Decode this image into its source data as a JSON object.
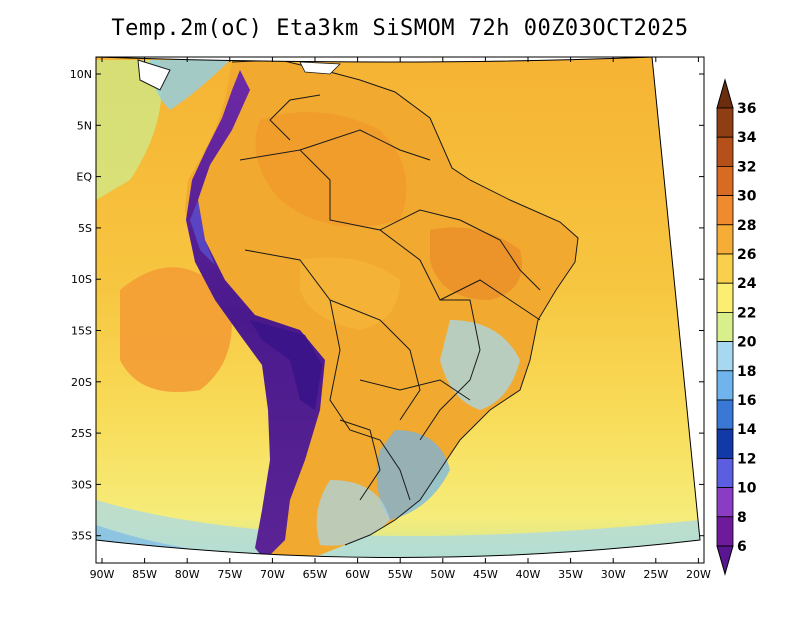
{
  "title": "Temp.2m(oC) Eta3km SiSMOM 72h 00Z03OCT2025",
  "colors": {
    "ocean_warm": "#f6b233",
    "ocean_mid": "#f7cf48",
    "ocean_cool": "#f6e874",
    "ocean_cold": "#cfe987",
    "land_hot": "#f0a530",
    "andes": "#7a2fa0",
    "andes_deep": "#4b1b86",
    "border": "#1a1a1a"
  },
  "map": {
    "lat_labels": [
      "10N",
      "5N",
      "EQ",
      "5S",
      "10S",
      "15S",
      "20S",
      "25S",
      "30S",
      "35S"
    ],
    "lon_labels": [
      "90W",
      "85W",
      "80W",
      "75W",
      "70W",
      "65W",
      "60W",
      "55W",
      "50W",
      "45W",
      "40W",
      "35W",
      "30W",
      "25W",
      "20W"
    ]
  },
  "colorbar": {
    "levels": [
      "36",
      "34",
      "32",
      "30",
      "28",
      "26",
      "24",
      "22",
      "20",
      "18",
      "16",
      "14",
      "12",
      "10",
      "8",
      "6"
    ],
    "colors": [
      "#6b2d0e",
      "#8f3d12",
      "#b5501a",
      "#d86a24",
      "#f08a2e",
      "#f6ad38",
      "#f8d04c",
      "#fbee72",
      "#d9ef8c",
      "#a6d9ef",
      "#6fb4ec",
      "#3a78d6",
      "#1239a8",
      "#5b5ee0",
      "#8a3cc2",
      "#6e1a9a"
    ]
  }
}
